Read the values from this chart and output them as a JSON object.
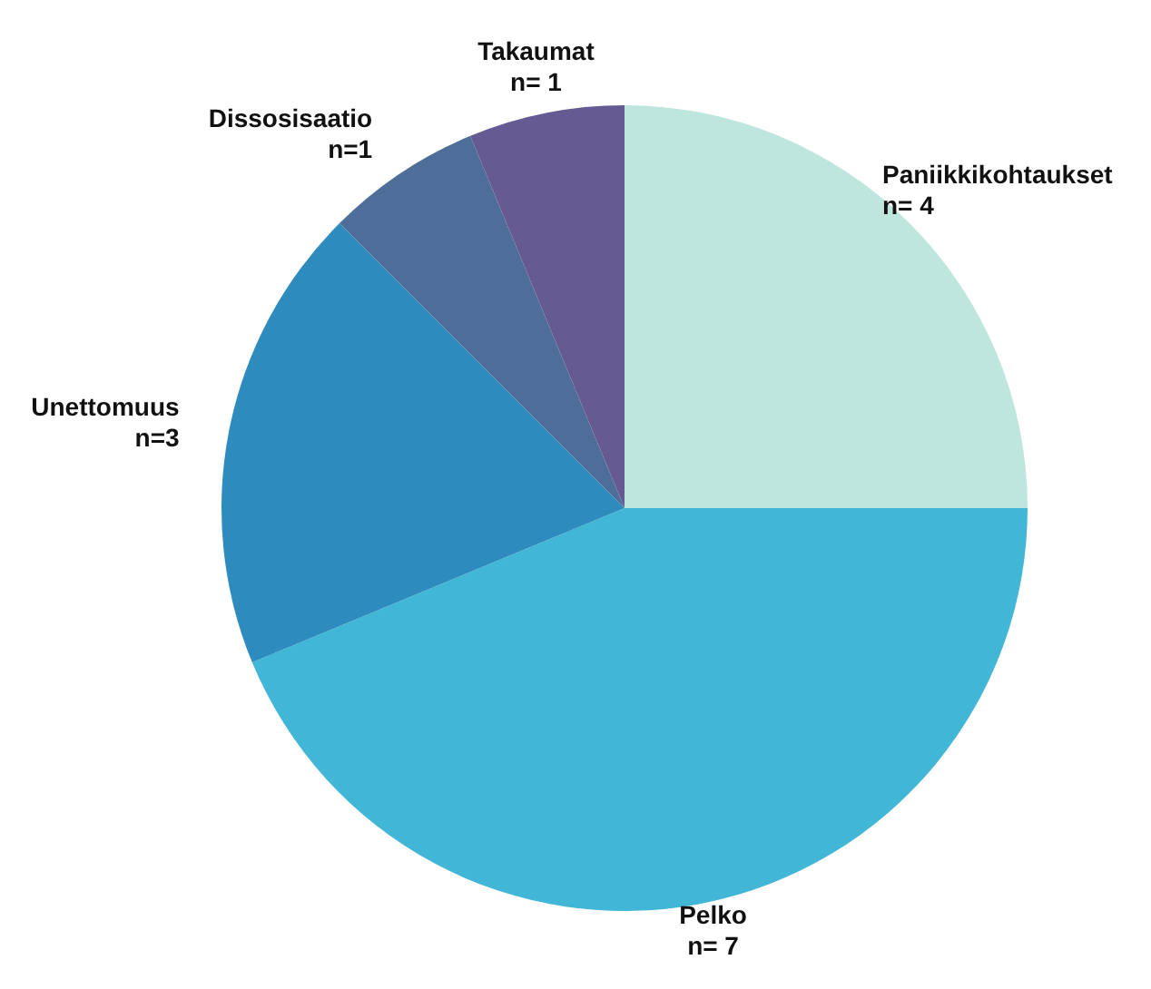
{
  "chart_data": {
    "type": "pie",
    "categories": [
      "Paniikkikohtaukset",
      "Pelko",
      "Unettomuus",
      "Dissosisaatio",
      "Takaumat"
    ],
    "values": [
      4,
      7,
      3,
      1,
      1
    ],
    "value_labels": [
      "n= 4",
      "n= 7",
      "n=3",
      "n=1",
      "n= 1"
    ],
    "colors": [
      "#bfe6dd",
      "#41b6d6",
      "#2e8bbd",
      "#4e6e99",
      "#665a92"
    ]
  }
}
